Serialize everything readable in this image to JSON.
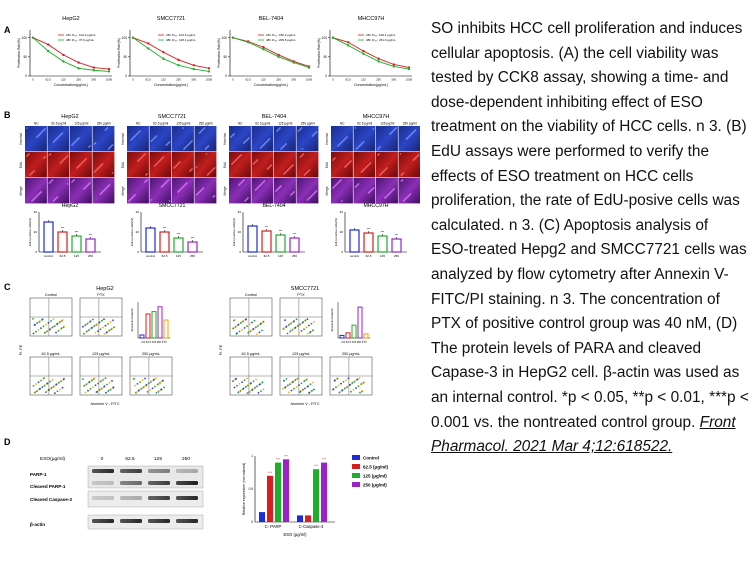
{
  "figure": {
    "panelA": {
      "letter": "A",
      "ylabel": "Proliferation Rate(%)",
      "xlabel": "Concentration(μg/mL)",
      "cells": [
        {
          "title": "HepG2",
          "l24": "24h IC₅₀: 104.0 μg/mL",
          "l48": "48h IC₅₀: 37.9 μg/mL"
        },
        {
          "title": "SMCC7721",
          "l24": "24h IC₅₀: 104.9 μg/mL",
          "l48": "48h IC₅₀: 128.1 μg/mL"
        },
        {
          "title": "BEL-7404",
          "l24": "24h IC₅₀: 180.2 μg/mL",
          "l48": "48h IC₅₀: 295.8 μg/mL"
        },
        {
          "title": "MHCC97H",
          "l24": "24h IC₅₀: 109.1 μg/mL",
          "l48": "48h IC₅₀: 261.0 μg/mL"
        }
      ]
    },
    "panelB": {
      "letter": "B",
      "cells": [
        "HepG2",
        "SMCC7721",
        "BEL-7404",
        "MHCC97H"
      ],
      "cols": [
        "NC",
        "62.5 μg/ml",
        "125 μg/ml",
        "250 μg/ml"
      ],
      "rows": [
        "Hoechst",
        "EdU",
        "Merge"
      ],
      "bar_ylabel": "EdU positive cells(%)",
      "bar_cats": [
        "control",
        "62.5",
        "125",
        "250"
      ]
    },
    "panelC": {
      "letter": "C",
      "cells": [
        "HepG2",
        "SMCC7721"
      ],
      "top_labels": [
        "Control",
        "PTX"
      ],
      "bottom_labels": [
        "62.5 μg/mL",
        "125 μg/mL",
        "250 μg/mL"
      ],
      "ylabel": "PI- PE",
      "xlabel": "Annexin V - FITC",
      "bar_ylabel": "Apoptosis Rate(%)",
      "bar_xlabel": "Ctrl 62.5 125 250 PTX"
    },
    "panelD": {
      "letter": "D",
      "header_label": "ESO(μg/ml)",
      "doses": [
        "0",
        "62.5",
        "125",
        "250"
      ],
      "blot_labels": [
        "PARP-1",
        "Cleaved PARP-1",
        "Cleaved Caspase-3",
        "β-actin"
      ],
      "chart_ylabel": "Relative expression (normalized)",
      "chart_xlabel": "ESO (μg/ml)",
      "sig": "***",
      "legend": [
        "Control",
        "62.5 (μg/ml)",
        "125 (μg/ml)",
        "250 (μg/ml)"
      ],
      "colors": [
        "#1f2bd9",
        "#d81e1e",
        "#1fae2b",
        "#9b21c8"
      ]
    }
  },
  "chart_data": [
    {
      "type": "line",
      "title": "HepG2",
      "xlabel": "Concentration(μg/mL)",
      "ylabel": "Proliferation Rate(%)",
      "x": [
        0,
        62.5,
        125,
        250,
        500,
        1000
      ],
      "series": [
        {
          "name": "24h",
          "color": "#d81e1e",
          "values": [
            100,
            82,
            55,
            35,
            22,
            18
          ]
        },
        {
          "name": "48h",
          "color": "#1fae2b",
          "values": [
            100,
            65,
            38,
            20,
            15,
            12
          ]
        }
      ],
      "ylim": [
        0,
        120
      ]
    },
    {
      "type": "line",
      "title": "SMCC7721",
      "xlabel": "Concentration(μg/mL)",
      "ylabel": "Proliferation Rate(%)",
      "x": [
        0,
        62.5,
        125,
        250,
        500,
        1000
      ],
      "series": [
        {
          "name": "24h",
          "color": "#d81e1e",
          "values": [
            100,
            85,
            62,
            42,
            28,
            20
          ]
        },
        {
          "name": "48h",
          "color": "#1fae2b",
          "values": [
            100,
            72,
            45,
            28,
            18,
            12
          ]
        }
      ],
      "ylim": [
        0,
        120
      ]
    },
    {
      "type": "line",
      "title": "BEL-7404",
      "xlabel": "Concentration(μg/mL)",
      "ylabel": "Proliferation Rate(%)",
      "x": [
        0,
        62.5,
        125,
        250,
        500,
        1000
      ],
      "series": [
        {
          "name": "24h",
          "color": "#d81e1e",
          "values": [
            100,
            90,
            75,
            55,
            38,
            25
          ]
        },
        {
          "name": "48h",
          "color": "#1fae2b",
          "values": [
            100,
            88,
            70,
            50,
            35,
            22
          ]
        }
      ],
      "ylim": [
        0,
        120
      ]
    },
    {
      "type": "line",
      "title": "MHCC97H",
      "xlabel": "Concentration(μg/mL)",
      "ylabel": "Proliferation Rate(%)",
      "x": [
        0,
        62.5,
        125,
        250,
        500,
        1000
      ],
      "series": [
        {
          "name": "24h",
          "color": "#d81e1e",
          "values": [
            100,
            88,
            65,
            45,
            30,
            22
          ]
        },
        {
          "name": "48h",
          "color": "#1fae2b",
          "values": [
            100,
            80,
            58,
            38,
            25,
            18
          ]
        }
      ],
      "ylim": [
        0,
        120
      ]
    },
    {
      "type": "bar",
      "title": "HepG2",
      "ylabel": "EdU positive cells(%)",
      "categories": [
        "control",
        "62.5",
        "125",
        "250"
      ],
      "values": [
        30,
        20,
        16,
        13
      ],
      "colors": [
        "#1f2bd9",
        "#d81e1e",
        "#1fae2b",
        "#9b21c8"
      ],
      "ylim": [
        0,
        40
      ]
    },
    {
      "type": "bar",
      "title": "SMCC7721",
      "ylabel": "EdU positive cells(%)",
      "categories": [
        "control",
        "62.5",
        "125",
        "250"
      ],
      "values": [
        24,
        20,
        14,
        10
      ],
      "colors": [
        "#1f2bd9",
        "#d81e1e",
        "#1fae2b",
        "#9b21c8"
      ],
      "ylim": [
        0,
        40
      ]
    },
    {
      "type": "bar",
      "title": "BEL-7404",
      "ylabel": "EdU positive cells(%)",
      "categories": [
        "control",
        "62.5",
        "125",
        "250"
      ],
      "values": [
        26,
        21,
        17,
        14
      ],
      "colors": [
        "#1f2bd9",
        "#d81e1e",
        "#1fae2b",
        "#9b21c8"
      ],
      "ylim": [
        0,
        40
      ]
    },
    {
      "type": "bar",
      "title": "MHCC97H",
      "ylabel": "EdU positive cells(%)",
      "categories": [
        "control",
        "62.5",
        "125",
        "250"
      ],
      "values": [
        22,
        19,
        16,
        13
      ],
      "colors": [
        "#1f2bd9",
        "#d81e1e",
        "#1fae2b",
        "#9b21c8"
      ],
      "ylim": [
        0,
        40
      ]
    },
    {
      "type": "bar",
      "ylabel": "Apoptosis Rate(%)",
      "categories": [
        "Ctrl",
        "62.5",
        "125",
        "250",
        "PTX"
      ],
      "values": [
        5,
        40,
        44,
        52,
        30
      ],
      "colors": [
        "#1f2bd9",
        "#d81e1e",
        "#1fae2b",
        "#9b21c8",
        "#f2a300"
      ],
      "ylim": [
        0,
        60
      ]
    },
    {
      "type": "bar",
      "ylabel": "Apoptosis Rate(%)",
      "categories": [
        "Ctrl",
        "62.5",
        "125",
        "250",
        "PTX"
      ],
      "values": [
        5,
        10,
        25,
        60,
        8
      ],
      "colors": [
        "#1f2bd9",
        "#d81e1e",
        "#1fae2b",
        "#9b21c8",
        "#f2a300"
      ],
      "ylim": [
        0,
        70
      ]
    },
    {
      "type": "bar",
      "xlabel": "ESO (μg/ml)",
      "ylabel": "Relative expression (normalized)",
      "categories": [
        "C- PARP",
        "C-Caspase-3"
      ],
      "series": [
        {
          "name": "Control",
          "color": "#1f2bd9",
          "values": [
            0.15,
            0.1
          ]
        },
        {
          "name": "62.5 (μg/ml)",
          "color": "#d81e1e",
          "values": [
            0.7,
            0.1
          ]
        },
        {
          "name": "125 (μg/ml)",
          "color": "#1fae2b",
          "values": [
            0.9,
            0.8
          ]
        },
        {
          "name": "250 (μg/ml)",
          "color": "#9b21c8",
          "values": [
            0.95,
            0.9
          ]
        }
      ],
      "ylim": [
        0,
        1.0
      ]
    }
  ],
  "caption": {
    "text": "SO inhibits HCC cell proliferation and induces cellular apoptosis. (A) the cell viability was tested by CCK8 assay, showing a time- and dose-dependent inhibiting effect of ESO treatment on the viability of HCC cells. n  3. (B) EdU assays were performed to verify the effects of ESO treatment on HCC cells proliferation, the rate of EdU-posive cells was calculated. n  3. (C) Apoptosis analysis of ESO-treated Hepg2 and SMCC7721 cells was analyzed by flow cytometry after Annexin V-FITC/PI staining. n  3. The concentration of PTX of positive control group was 40 nM, (D) The protein levels of PARA and cleaved Capase-3 in HepG2 cell. β-actin was used as an internal control. *p < 0.05, **p < 0.01, ***p < 0.001 vs. the nontreated control group.",
    "citation": "Front Pharmacol. 2021 Mar 4;12:618522."
  }
}
